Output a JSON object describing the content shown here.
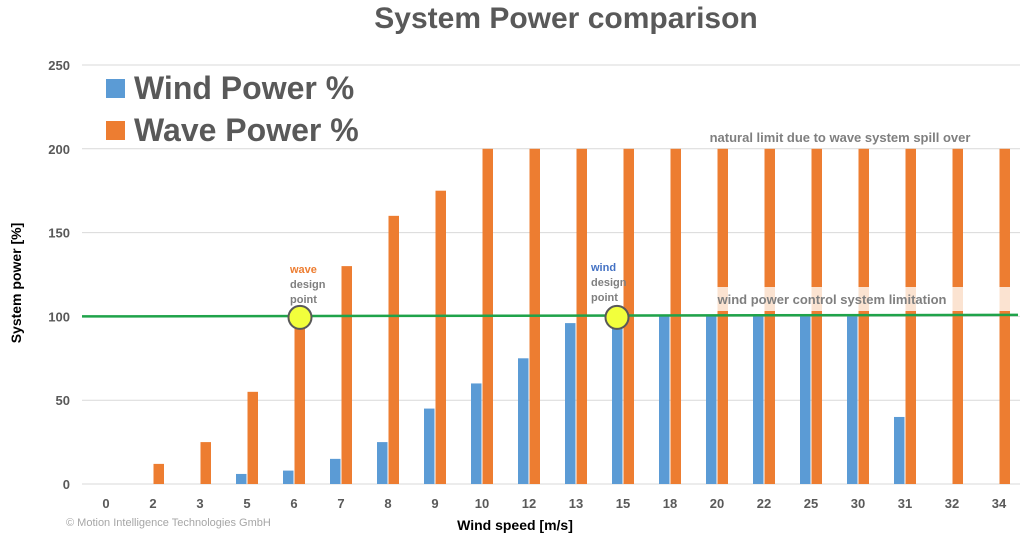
{
  "chart_data": {
    "type": "bar",
    "title": "System Power comparison",
    "xlabel": "Wind speed [m/s]",
    "ylabel": "System power [%]",
    "ylim": [
      0,
      250
    ],
    "yticks": [
      0,
      50,
      100,
      150,
      200,
      250
    ],
    "grid": true,
    "legend_position": "top-left",
    "categories": [
      "0",
      "2",
      "3",
      "5",
      "6",
      "7",
      "8",
      "9",
      "10",
      "12",
      "13",
      "15",
      "18",
      "20",
      "22",
      "25",
      "30",
      "31",
      "32",
      "34"
    ],
    "series": [
      {
        "name": "Wind Power %",
        "color": "#5b9bd5",
        "values": [
          0,
          0,
          0,
          6,
          8,
          15,
          25,
          45,
          60,
          75,
          96,
          100,
          100,
          100,
          100,
          100,
          100,
          40,
          0,
          0
        ]
      },
      {
        "name": "Wave Power %",
        "color": "#ed7d31",
        "values": [
          0,
          12,
          25,
          55,
          100,
          130,
          160,
          175,
          200,
          200,
          200,
          200,
          200,
          200,
          200,
          200,
          200,
          200,
          200,
          200
        ]
      }
    ],
    "reference_line": {
      "value": 100,
      "color": "#1fa34a"
    },
    "annotations": {
      "wave_limit": "natural limit due to wave system spill over",
      "wind_limit": "wind power control system limitation",
      "wave_point": {
        "word": "wave",
        "line2": "design",
        "line3": "point",
        "x": "6",
        "y": 100,
        "color": "#ed7d31"
      },
      "wind_point": {
        "word": "wind",
        "line2": "design",
        "line3": "point",
        "x": "15",
        "y": 100,
        "color": "#4472c4"
      }
    },
    "highlight_color": "#f2ff3c",
    "copyright": "© Motion Intelligence Technologies GmbH"
  }
}
